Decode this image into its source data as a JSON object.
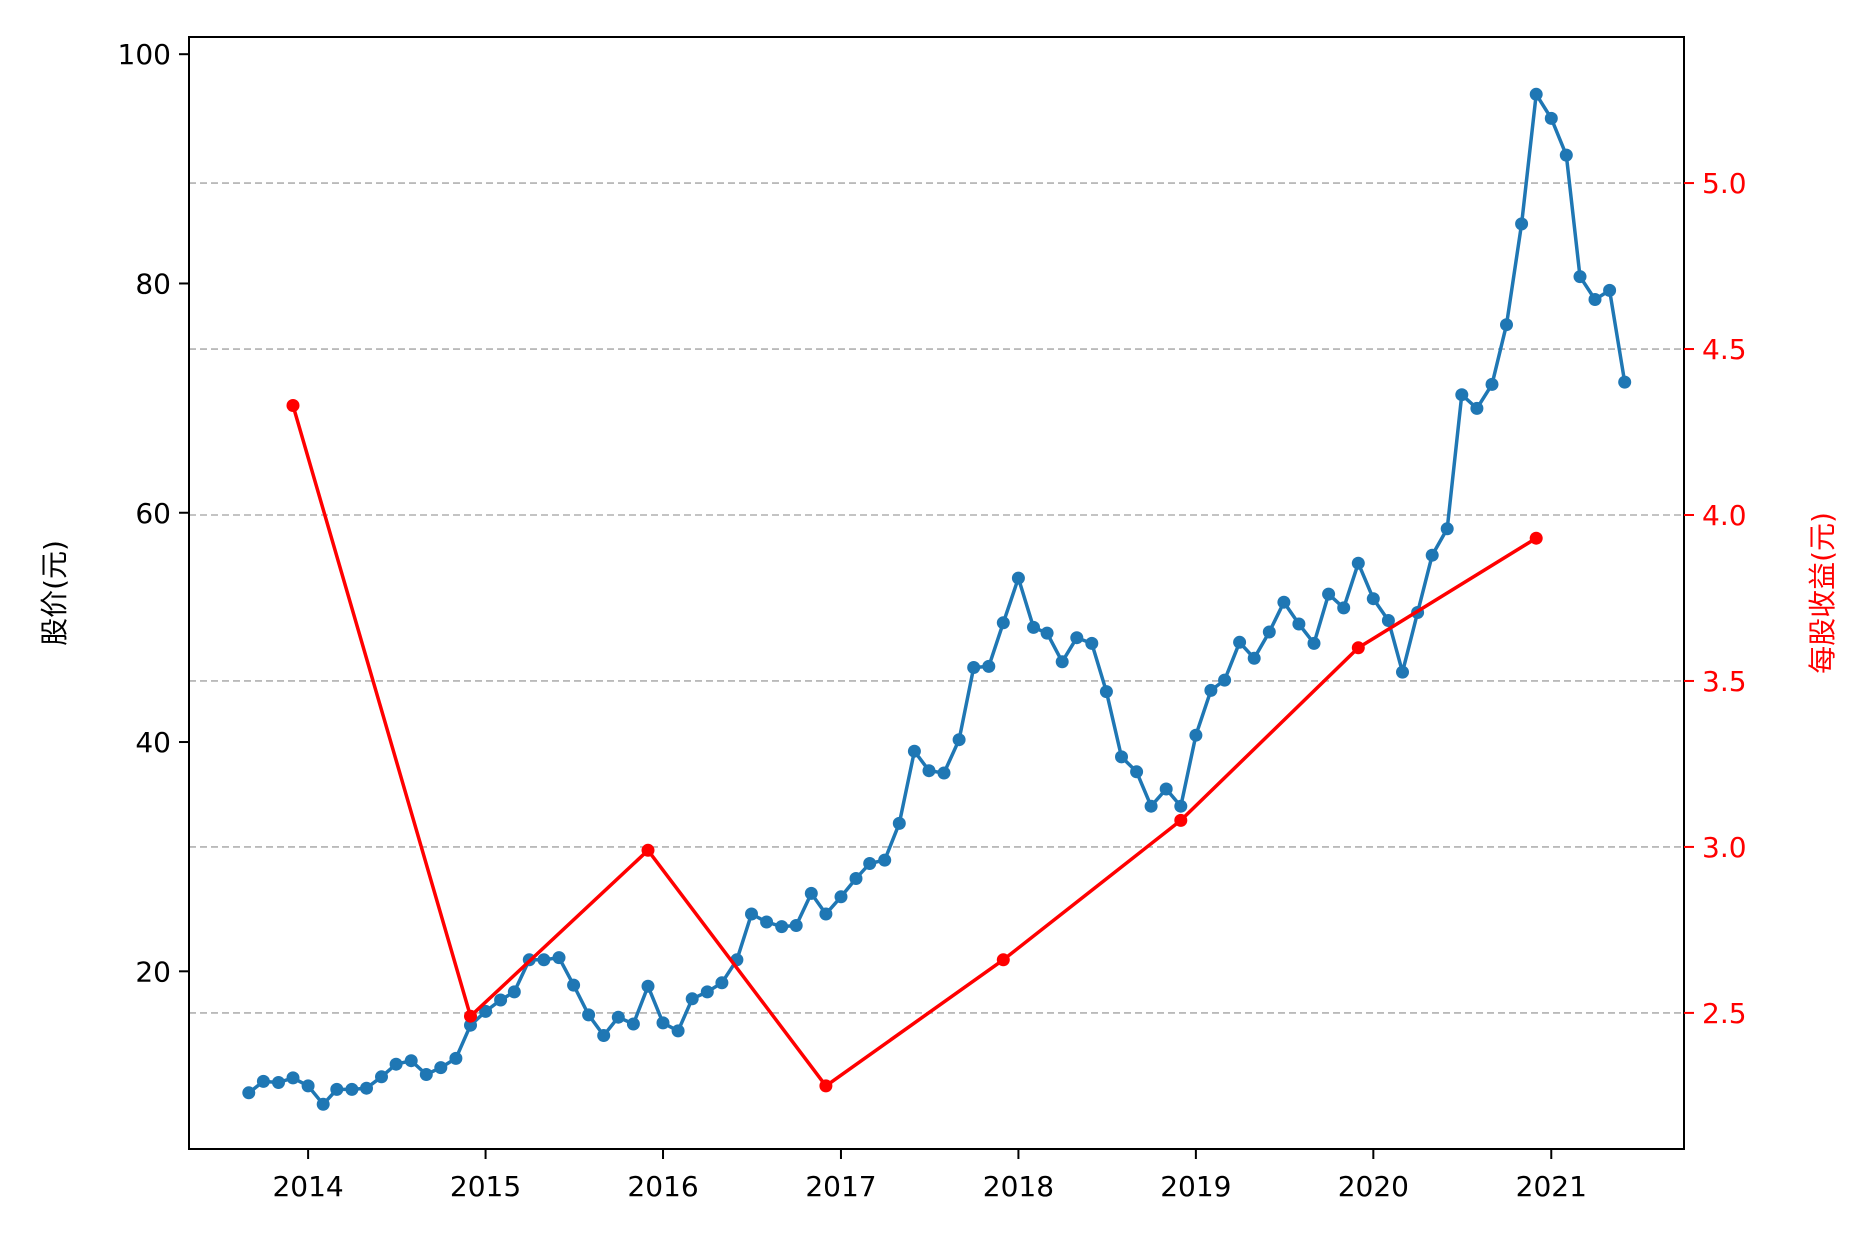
{
  "chart_data": {
    "type": "line",
    "x_type": "date",
    "xlim": [
      "2013-05-01",
      "2021-10-01"
    ],
    "x_ticks": [
      "2014-01-01",
      "2015-01-01",
      "2016-01-01",
      "2017-01-01",
      "2018-01-01",
      "2019-01-01",
      "2020-01-01",
      "2021-01-01"
    ],
    "x_tick_labels": [
      "2014",
      "2015",
      "2016",
      "2017",
      "2018",
      "2019",
      "2020",
      "2021"
    ],
    "y_left": {
      "label": "股价(元)",
      "ylim": [
        4.5,
        101.5
      ],
      "ticks": [
        20,
        40,
        60,
        80,
        100
      ],
      "tick_labels": [
        "20",
        "40",
        "60",
        "80",
        "100"
      ],
      "color": "#000000"
    },
    "y_right": {
      "label": "每股收益(元)",
      "ylim": [
        2.09,
        5.44
      ],
      "ticks": [
        2.5,
        3.0,
        3.5,
        4.0,
        4.5,
        5.0
      ],
      "tick_labels": [
        "2.5",
        "3.0",
        "3.5",
        "4.0",
        "4.5",
        "5.0"
      ],
      "color": "#ff0000"
    },
    "grid": {
      "axis": "y-right",
      "style": "dashed",
      "color": "#b0b0b0"
    },
    "series": [
      {
        "axis": "left",
        "color": "#1f77b4",
        "marker": "circle",
        "x": [
          "2013-09-01",
          "2013-10-01",
          "2013-11-01",
          "2013-12-01",
          "2014-01-01",
          "2014-02-01",
          "2014-03-01",
          "2014-04-01",
          "2014-05-01",
          "2014-06-01",
          "2014-07-01",
          "2014-08-01",
          "2014-09-01",
          "2014-10-01",
          "2014-11-01",
          "2014-12-01",
          "2015-01-01",
          "2015-02-01",
          "2015-03-01",
          "2015-04-01",
          "2015-05-01",
          "2015-06-01",
          "2015-07-01",
          "2015-08-01",
          "2015-09-01",
          "2015-10-01",
          "2015-11-01",
          "2015-12-01",
          "2016-01-01",
          "2016-02-01",
          "2016-03-01",
          "2016-04-01",
          "2016-05-01",
          "2016-06-01",
          "2016-07-01",
          "2016-08-01",
          "2016-09-01",
          "2016-10-01",
          "2016-11-01",
          "2016-12-01",
          "2017-01-01",
          "2017-02-01",
          "2017-03-01",
          "2017-04-01",
          "2017-05-01",
          "2017-06-01",
          "2017-07-01",
          "2017-08-01",
          "2017-09-01",
          "2017-10-01",
          "2017-11-01",
          "2017-12-01",
          "2018-01-01",
          "2018-02-01",
          "2018-03-01",
          "2018-04-01",
          "2018-05-01",
          "2018-06-01",
          "2018-07-01",
          "2018-08-01",
          "2018-09-01",
          "2018-10-01",
          "2018-11-01",
          "2018-12-01",
          "2019-01-01",
          "2019-02-01",
          "2019-03-01",
          "2019-04-01",
          "2019-05-01",
          "2019-06-01",
          "2019-07-01",
          "2019-08-01",
          "2019-09-01",
          "2019-10-01",
          "2019-11-01",
          "2019-12-01",
          "2020-01-01",
          "2020-02-01",
          "2020-03-01",
          "2020-04-01",
          "2020-05-01",
          "2020-06-01",
          "2020-07-01",
          "2020-08-01",
          "2020-09-01",
          "2020-10-01",
          "2020-11-01",
          "2020-12-01",
          "2021-01-01",
          "2021-02-01",
          "2021-03-01",
          "2021-04-01",
          "2021-05-01",
          "2021-06-01"
        ],
        "values": [
          9.4,
          10.4,
          10.3,
          10.7,
          10.0,
          8.4,
          9.7,
          9.7,
          9.8,
          10.8,
          11.9,
          12.2,
          11.0,
          11.6,
          12.4,
          15.3,
          16.5,
          17.5,
          18.2,
          21.0,
          21.0,
          21.2,
          18.8,
          16.2,
          14.4,
          16.0,
          15.4,
          18.7,
          15.5,
          14.8,
          17.6,
          18.2,
          19.0,
          21.0,
          25.0,
          24.3,
          23.9,
          24.0,
          26.8,
          25.0,
          26.5,
          28.1,
          29.4,
          29.7,
          32.9,
          39.2,
          37.5,
          37.3,
          40.2,
          46.5,
          46.6,
          50.4,
          54.3,
          50.0,
          49.5,
          47.0,
          49.1,
          48.6,
          44.4,
          38.7,
          37.4,
          34.4,
          35.9,
          34.4,
          40.6,
          44.5,
          45.4,
          48.7,
          47.3,
          49.6,
          52.2,
          50.3,
          48.6,
          52.9,
          51.7,
          55.6,
          52.5,
          50.6,
          46.1,
          51.3,
          56.3,
          58.6,
          70.3,
          69.1,
          71.2,
          76.4,
          85.2,
          96.5,
          94.4,
          91.2,
          80.6,
          78.6,
          79.4,
          71.4
        ]
      },
      {
        "axis": "right",
        "color": "#ff0000",
        "marker": "circle",
        "x": [
          "2013-12-01",
          "2014-12-01",
          "2015-12-01",
          "2016-12-01",
          "2017-12-01",
          "2018-12-01",
          "2019-12-01",
          "2020-12-01"
        ],
        "values": [
          4.33,
          2.49,
          2.99,
          2.28,
          2.66,
          3.08,
          3.6,
          3.93
        ]
      }
    ]
  }
}
